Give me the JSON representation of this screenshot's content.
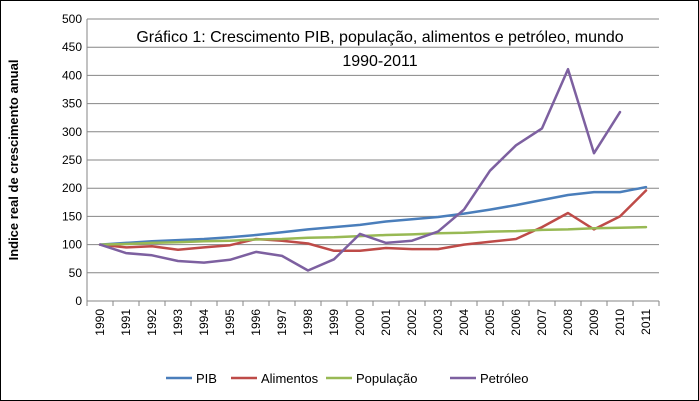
{
  "chart_data": {
    "type": "line",
    "title_lines": [
      "Gráfico 1: Crescimento PIB, população,  alimentos e petróleo, mundo",
      "1990-2011"
    ],
    "xlabel": "",
    "ylabel": "Indice real de crescimento anual",
    "ylim": [
      0,
      500
    ],
    "yticks": [
      0,
      50,
      100,
      150,
      200,
      250,
      300,
      350,
      400,
      450,
      500
    ],
    "categories": [
      "1990",
      "1991",
      "1992",
      "1993",
      "1994",
      "1995",
      "1996",
      "1997",
      "1998",
      "1999",
      "2000",
      "2001",
      "2002",
      "2003",
      "2004",
      "2005",
      "2006",
      "2007",
      "2008",
      "2009",
      "2010",
      "2011"
    ],
    "grid": "horizontal",
    "legend_position": "bottom",
    "series": [
      {
        "name": "PIB",
        "color": "#4a7ebb",
        "values": [
          100,
          103,
          106,
          108,
          110,
          113,
          117,
          122,
          127,
          131,
          135,
          141,
          145,
          149,
          155,
          162,
          170,
          179,
          188,
          193,
          193,
          202
        ]
      },
      {
        "name": "Alimentos",
        "color": "#be4b48",
        "values": [
          100,
          95,
          97,
          91,
          95,
          99,
          110,
          107,
          102,
          89,
          89,
          94,
          92,
          92,
          100,
          105,
          110,
          131,
          156,
          127,
          150,
          196
        ]
      },
      {
        "name": "População",
        "color": "#98b954",
        "values": [
          100,
          101,
          103,
          104,
          106,
          107,
          109,
          110,
          112,
          113,
          115,
          117,
          118,
          120,
          121,
          123,
          124,
          126,
          127,
          129,
          130,
          131
        ]
      },
      {
        "name": "Petróleo",
        "color": "#7d60a0",
        "values": [
          100,
          85,
          81,
          71,
          68,
          73,
          87,
          80,
          54,
          74,
          119,
          103,
          107,
          123,
          162,
          231,
          276,
          306,
          411,
          262,
          335,
          null
        ]
      }
    ]
  }
}
